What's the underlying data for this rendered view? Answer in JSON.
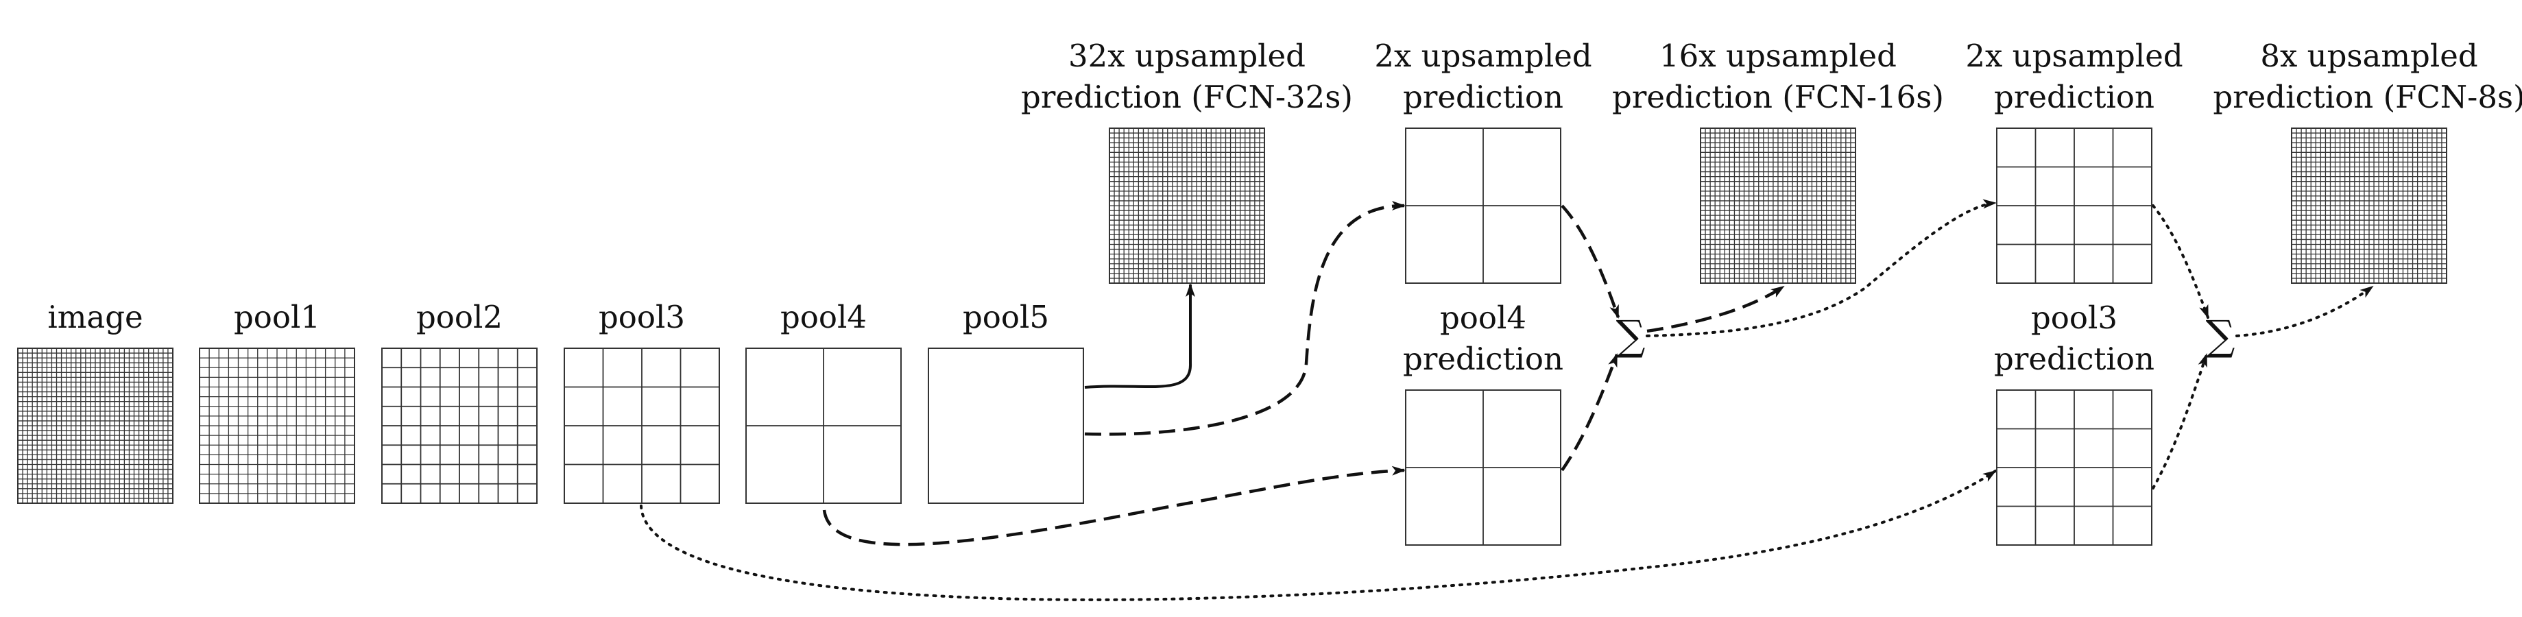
{
  "colors": {
    "stroke": "#333333",
    "text": "#111111",
    "background": "#ffffff"
  },
  "sum_symbol": "∑",
  "blocks": [
    {
      "id": "image",
      "label": [
        "image"
      ],
      "grid": 32
    },
    {
      "id": "pool1",
      "label": [
        "pool1"
      ],
      "grid": 16
    },
    {
      "id": "pool2",
      "label": [
        "pool2"
      ],
      "grid": 8
    },
    {
      "id": "pool3",
      "label": [
        "pool3"
      ],
      "grid": 4
    },
    {
      "id": "pool4",
      "label": [
        "pool4"
      ],
      "grid": 2
    },
    {
      "id": "pool5",
      "label": [
        "pool5"
      ],
      "grid": 1
    },
    {
      "id": "fcn32",
      "label": [
        "32x upsampled",
        "prediction (FCN-32s)"
      ],
      "grid": 32
    },
    {
      "id": "up2a",
      "label": [
        "2x upsampled",
        "prediction"
      ],
      "grid": 2
    },
    {
      "id": "pool4pred",
      "label": [
        "pool4",
        "prediction"
      ],
      "grid": 2
    },
    {
      "id": "fcn16",
      "label": [
        "16x upsampled",
        "prediction (FCN-16s)"
      ],
      "grid": 32
    },
    {
      "id": "up2b",
      "label": [
        "2x upsampled",
        "prediction"
      ],
      "grid": 4
    },
    {
      "id": "pool3pred",
      "label": [
        "pool3",
        "prediction"
      ],
      "grid": 4
    },
    {
      "id": "fcn8",
      "label": [
        "8x upsampled",
        "prediction (FCN-8s)"
      ],
      "grid": 32
    }
  ],
  "connections": [
    {
      "from": "pool5",
      "to": "fcn32",
      "style": "solid"
    },
    {
      "from": "pool5",
      "to": "up2a",
      "style": "dashed"
    },
    {
      "from": "pool4",
      "to": "pool4pred",
      "style": "dashed"
    },
    {
      "from": "up2a",
      "to": "sum1",
      "style": "dashed"
    },
    {
      "from": "pool4pred",
      "to": "sum1",
      "style": "dashed"
    },
    {
      "from": "sum1",
      "to": "fcn16",
      "style": "dashed"
    },
    {
      "from": "sum1",
      "to": "up2b",
      "style": "dotted"
    },
    {
      "from": "pool3",
      "to": "pool3pred",
      "style": "dotted"
    },
    {
      "from": "up2b",
      "to": "sum2",
      "style": "dotted"
    },
    {
      "from": "pool3pred",
      "to": "sum2",
      "style": "dotted"
    },
    {
      "from": "sum2",
      "to": "fcn8",
      "style": "dotted"
    }
  ]
}
